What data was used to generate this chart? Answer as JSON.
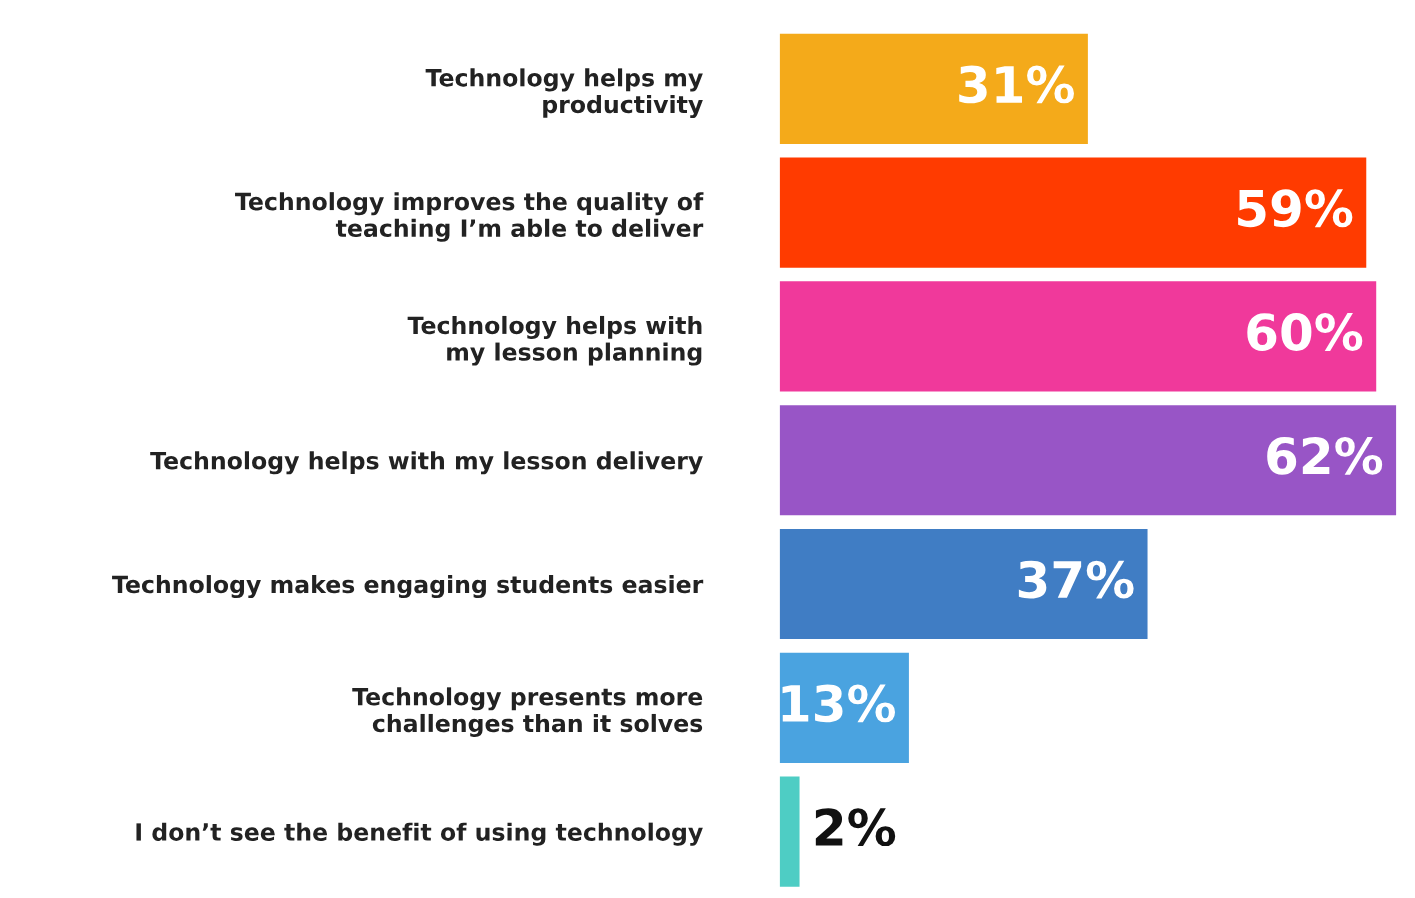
{
  "chart_data": {
    "type": "bar",
    "orientation": "horizontal",
    "categories": [
      "Technology helps my\nproductivity",
      "Technology improves the quality of\nteaching I’m able to deliver",
      "Technology helps with\nmy lesson planning",
      "Technology helps with my lesson delivery",
      "Technology makes engaging students easier",
      "Technology presents more\nchallenges than it solves",
      "I don’t see the benefit of using technology"
    ],
    "values": [
      31,
      59,
      60,
      62,
      37,
      13,
      2
    ],
    "colors": [
      "#f4aa1a",
      "#ff3b00",
      "#f0399b",
      "#9855c6",
      "#407dc4",
      "#4aa3e0",
      "#4ecdc4"
    ],
    "value_labels": [
      "31%",
      "59%",
      "60%",
      "62%",
      "37%",
      "13%",
      "2%"
    ],
    "grid": false,
    "legend": false
  }
}
